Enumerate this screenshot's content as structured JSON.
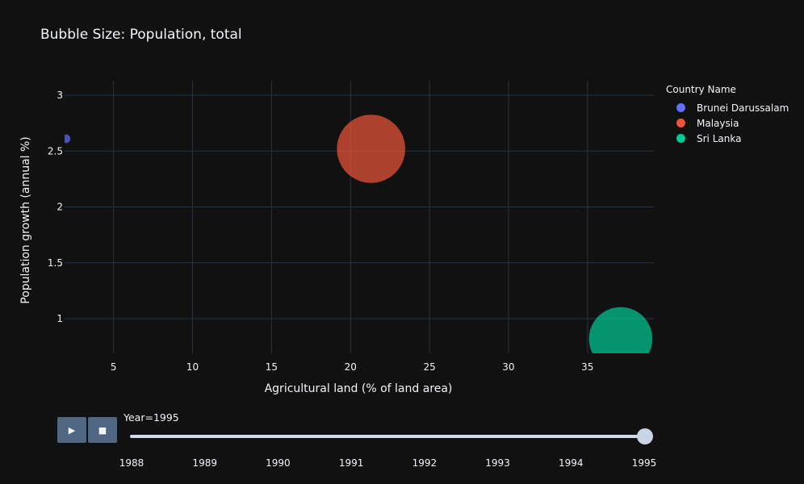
{
  "chart_data": {
    "type": "scatter",
    "title": "Bubble Size: Population, total",
    "xlabel": "Agricultural land (% of land area)",
    "ylabel": "Population growth (annual %)",
    "xlim": [
      1.9,
      39.2
    ],
    "ylim": [
      0.69,
      3.13
    ],
    "xticks": [
      5,
      10,
      15,
      20,
      25,
      30,
      35
    ],
    "yticks": [
      1,
      1.5,
      2,
      2.5,
      3
    ],
    "grid": true,
    "legend_title": "Country Name",
    "legend_position": "top-right",
    "series": [
      {
        "name": "Brunei Darussalam",
        "color": "#636efa",
        "points": [
          {
            "x": 2.0,
            "y": 2.61
          }
        ]
      },
      {
        "name": "Malaysia",
        "color": "#EF553B",
        "points": [
          {
            "x": 21.3,
            "y": 2.52
          }
        ]
      },
      {
        "name": "Sri Lanka",
        "color": "#00cc96",
        "points": [
          {
            "x": 37.1,
            "y": 0.82
          }
        ]
      }
    ],
    "slider": {
      "label": "Year=1995",
      "years": [
        "1988",
        "1989",
        "1990",
        "1991",
        "1992",
        "1993",
        "1994",
        "1995"
      ],
      "selected": "1995"
    }
  },
  "controls": {
    "play_icon": "▶",
    "stop_icon": "■"
  }
}
